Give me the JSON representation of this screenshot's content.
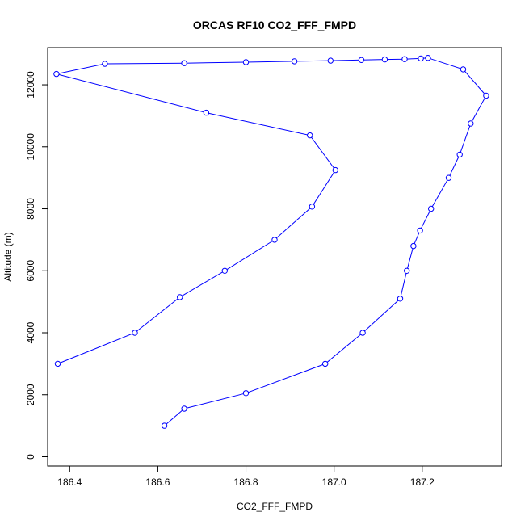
{
  "chart_data": {
    "type": "line",
    "title": "ORCAS RF10 CO2_FFF_FMPD",
    "xlabel": "CO2_FFF_FMPD",
    "ylabel": "Altitude (m)",
    "xlim": [
      186.35,
      187.38
    ],
    "ylim": [
      -300,
      13200
    ],
    "x_ticks": [
      186.4,
      186.6,
      186.8,
      187.0,
      187.2
    ],
    "x_tick_labels": [
      "186.4",
      "186.6",
      "186.8",
      "187.0",
      "187.2"
    ],
    "y_ticks": [
      0,
      2000,
      4000,
      6000,
      8000,
      10000,
      12000
    ],
    "y_tick_labels": [
      "0",
      "2000",
      "4000",
      "6000",
      "8000",
      "10000",
      "12000"
    ],
    "grid": false,
    "line_color": "#0000ff",
    "marker": "open-circle",
    "series": [
      {
        "x": [
          186.615,
          186.66,
          186.8,
          186.98,
          187.065,
          187.15,
          187.165,
          187.18,
          187.195,
          187.22,
          187.26,
          187.285,
          187.31,
          187.345,
          187.293,
          187.213,
          187.197,
          187.16,
          187.115,
          187.062,
          186.992,
          186.91,
          186.8,
          186.66,
          186.48,
          186.37,
          186.71,
          186.945,
          187.003,
          186.95,
          186.865,
          186.752,
          186.65,
          186.548,
          186.373
        ],
        "y": [
          1000,
          1550,
          2050,
          3000,
          4000,
          5100,
          6000,
          6800,
          7300,
          8000,
          9000,
          9750,
          10750,
          11650,
          12500,
          12870,
          12850,
          12830,
          12820,
          12800,
          12780,
          12760,
          12730,
          12700,
          12680,
          12350,
          11100,
          10370,
          9250,
          8070,
          7000,
          6000,
          5150,
          4000,
          3000
        ]
      }
    ]
  }
}
